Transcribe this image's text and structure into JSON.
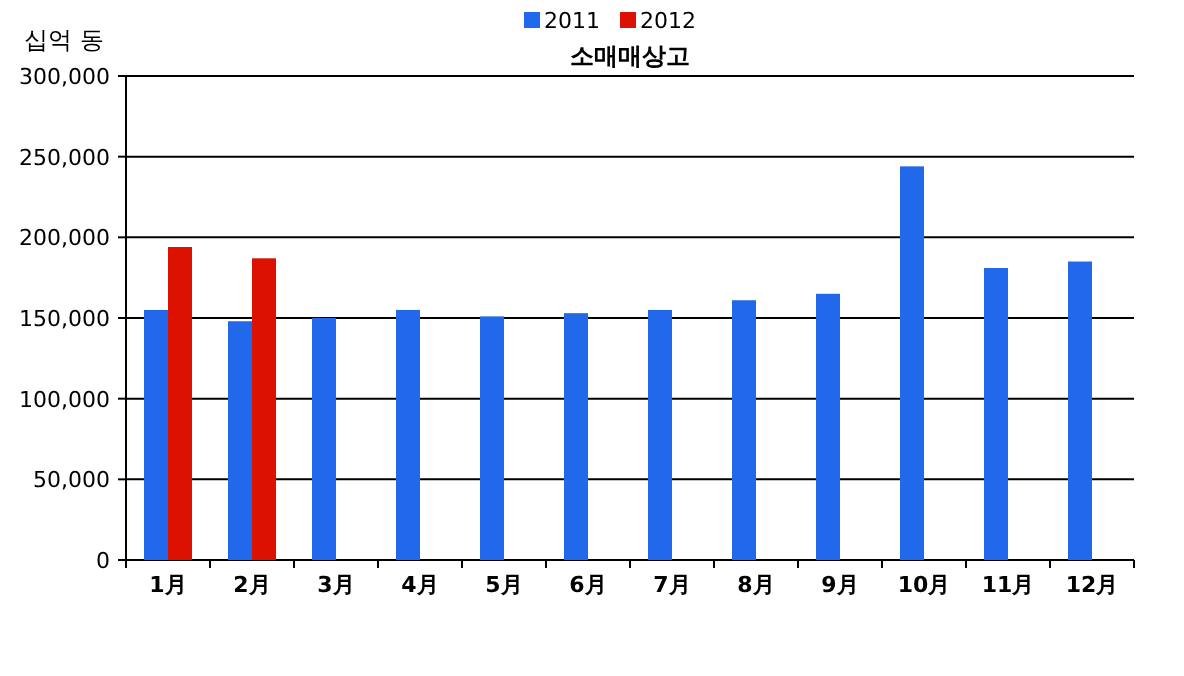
{
  "chart_data": {
    "type": "bar",
    "title": "소매매상고",
    "ylabel": "십억 동",
    "categories": [
      "1月",
      "2月",
      "3月",
      "4月",
      "5月",
      "6月",
      "7月",
      "8月",
      "9月",
      "10月",
      "11月",
      "12月"
    ],
    "series": [
      {
        "name": "2011",
        "color": "#2268ea",
        "values": [
          155000,
          148000,
          150000,
          155000,
          151000,
          153000,
          155000,
          161000,
          165000,
          244000,
          181000,
          185000
        ]
      },
      {
        "name": "2012",
        "color": "#dd1100",
        "values": [
          194000,
          187000,
          null,
          null,
          null,
          null,
          null,
          null,
          null,
          null,
          null,
          null
        ]
      }
    ],
    "ylim": [
      0,
      300000
    ],
    "yticks": [
      {
        "value": 0,
        "label": "0"
      },
      {
        "value": 50000,
        "label": "50,000"
      },
      {
        "value": 100000,
        "label": "100,000"
      },
      {
        "value": 150000,
        "label": "150,000"
      },
      {
        "value": 200000,
        "label": "200,000"
      },
      {
        "value": 250000,
        "label": "250,000"
      },
      {
        "value": 300000,
        "label": "300,000"
      }
    ],
    "grid": "y",
    "legend": "top"
  }
}
